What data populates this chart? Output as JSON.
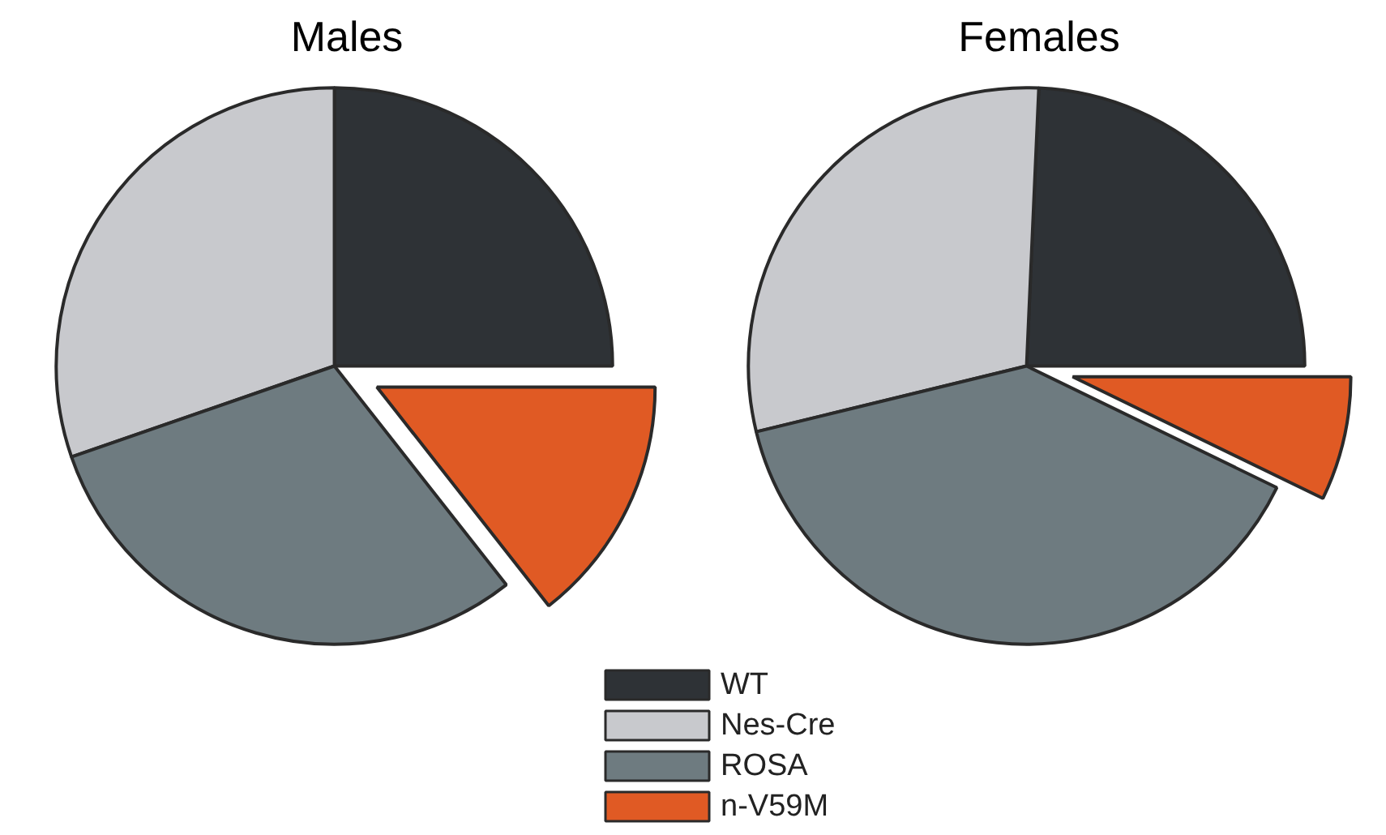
{
  "chart_data": [
    {
      "type": "pie",
      "title": "Males",
      "categories": [
        "WT",
        "Nes-Cre",
        "ROSA",
        "n-V59M"
      ],
      "values": [
        25,
        30.3,
        30.3,
        14.4
      ],
      "colors": [
        "#2e3236",
        "#c8c9cd",
        "#6e7b80",
        "#e05a24"
      ],
      "legend": "bottom"
    },
    {
      "type": "pie",
      "title": "Females",
      "categories": [
        null,
        null,
        null,
        null
      ],
      "values": [
        24.3,
        29.5,
        39,
        7.2
      ],
      "colors": [
        "#2e3236",
        "#c8c9cd",
        "#6e7b80",
        "#e05a24"
      ]
    }
  ]
}
